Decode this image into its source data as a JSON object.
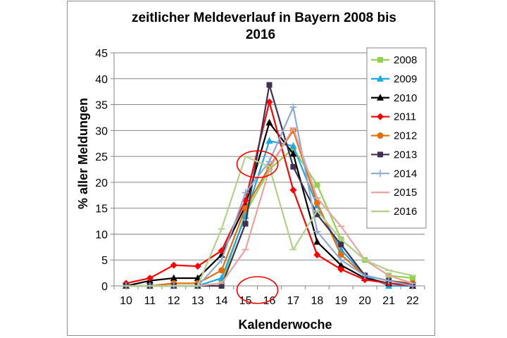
{
  "chart_data": {
    "type": "line",
    "title_line1": "zeitlicher Meldeverlauf in Bayern 2008 bis",
    "title_line2": "2016",
    "xlabel": "Kalenderwoche",
    "ylabel": "% aller Meldungen",
    "x": [
      10,
      11,
      12,
      13,
      14,
      15,
      16,
      17,
      18,
      19,
      20,
      21,
      22
    ],
    "ylim": [
      0,
      45
    ],
    "yticks": [
      0,
      5,
      10,
      15,
      20,
      25,
      30,
      35,
      40,
      45
    ],
    "grid": "horizontal",
    "legend_position": "right",
    "series": [
      {
        "name": "2008",
        "color": "#92d050",
        "marker": "square",
        "values": [
          0,
          0,
          0,
          0,
          0.5,
          14,
          22.5,
          26.5,
          19.5,
          9,
          5,
          2,
          1.5
        ]
      },
      {
        "name": "2009",
        "color": "#1ea7e1",
        "marker": "triangle",
        "values": [
          0,
          0,
          0,
          0,
          1.5,
          13.5,
          28,
          27,
          15.5,
          7,
          2,
          0,
          0
        ]
      },
      {
        "name": "2010",
        "color": "#000000",
        "marker": "triangle",
        "values": [
          0,
          1,
          1.5,
          1.5,
          6,
          15.5,
          31.5,
          25.5,
          8.5,
          4,
          1.5,
          0.5,
          0
        ]
      },
      {
        "name": "2011",
        "color": "#ff0000",
        "marker": "diamond",
        "values": [
          0.5,
          1.5,
          4,
          3.8,
          6.8,
          16.5,
          35.5,
          18.5,
          6,
          3.2,
          1.2,
          0.5,
          0
        ]
      },
      {
        "name": "2012",
        "color": "#e46c0a",
        "marker": "circle",
        "values": [
          0,
          0,
          0.5,
          0.5,
          3,
          15,
          23,
          30,
          16,
          6,
          2,
          1,
          0.5
        ]
      },
      {
        "name": "2013",
        "color": "#403152",
        "marker": "square",
        "values": [
          0,
          0,
          0,
          0,
          0,
          12,
          38.8,
          23,
          13.8,
          8,
          2,
          1,
          0.2
        ]
      },
      {
        "name": "2014",
        "color": "#8ea9d0",
        "marker": "plus",
        "values": [
          0,
          0,
          0,
          0,
          5,
          18,
          24,
          34.5,
          10.5,
          5,
          2,
          1,
          0
        ]
      },
      {
        "name": "2015",
        "color": "#e6a3a1",
        "marker": "dash",
        "values": [
          0,
          0,
          0,
          0,
          0.5,
          7,
          22.5,
          30.5,
          17,
          11.5,
          5,
          2,
          0.5
        ]
      },
      {
        "name": "2016",
        "color": "#b2cf8c",
        "marker": "dash",
        "values": [
          0,
          0,
          0,
          0,
          11,
          25,
          23,
          7,
          14.5,
          9,
          5,
          3,
          2
        ]
      }
    ],
    "annotations": [
      {
        "type": "ellipse",
        "color": "#ff0000",
        "center_x": 15.5,
        "center_y": 23.5
      },
      {
        "type": "ellipse",
        "color": "#ff0000",
        "center_x": 15.5,
        "center_y": -0.8
      }
    ]
  }
}
